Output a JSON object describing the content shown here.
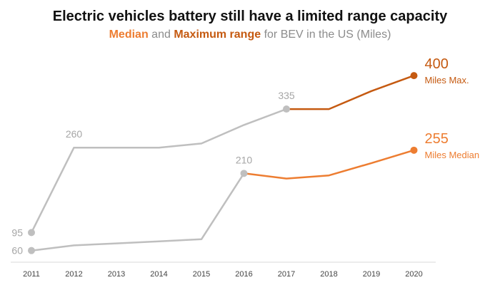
{
  "header": {
    "title": "Electric vehicles battery still have a limited range capacity",
    "subtitle_median": "Median",
    "subtitle_and": " and ",
    "subtitle_max": "Maximum range",
    "subtitle_rest": " for BEV in the US (Miles)"
  },
  "colors": {
    "gray": "#bfbfbf",
    "median": "#ed7d31",
    "max": "#c55a11"
  },
  "chart_data": {
    "type": "line",
    "title": "Electric vehicles battery still have a limited range capacity",
    "subtitle": "Median and Maximum range for BEV in the US (Miles)",
    "x": [
      2011,
      2012,
      2013,
      2014,
      2015,
      2016,
      2017,
      2018,
      2019,
      2020
    ],
    "ylim": [
      0,
      450
    ],
    "grid": false,
    "series": [
      {
        "name": "Maximum range",
        "values": [
          95,
          260,
          260,
          260,
          268,
          304,
          335,
          335,
          370,
          400
        ],
        "highlight_from_year": 2017,
        "end_label_value": "400",
        "end_label_text": "Miles Max."
      },
      {
        "name": "Median",
        "values": [
          60,
          70,
          74,
          78,
          82,
          210,
          200,
          206,
          230,
          255
        ],
        "highlight_from_year": 2016,
        "end_label_value": "255",
        "end_label_text": "Miles Median"
      }
    ],
    "point_labels": [
      {
        "series": 0,
        "year": 2011,
        "text": "95"
      },
      {
        "series": 0,
        "year": 2012,
        "text": "260"
      },
      {
        "series": 0,
        "year": 2017,
        "text": "335"
      },
      {
        "series": 1,
        "year": 2011,
        "text": "60"
      },
      {
        "series": 1,
        "year": 2016,
        "text": "210"
      }
    ]
  }
}
